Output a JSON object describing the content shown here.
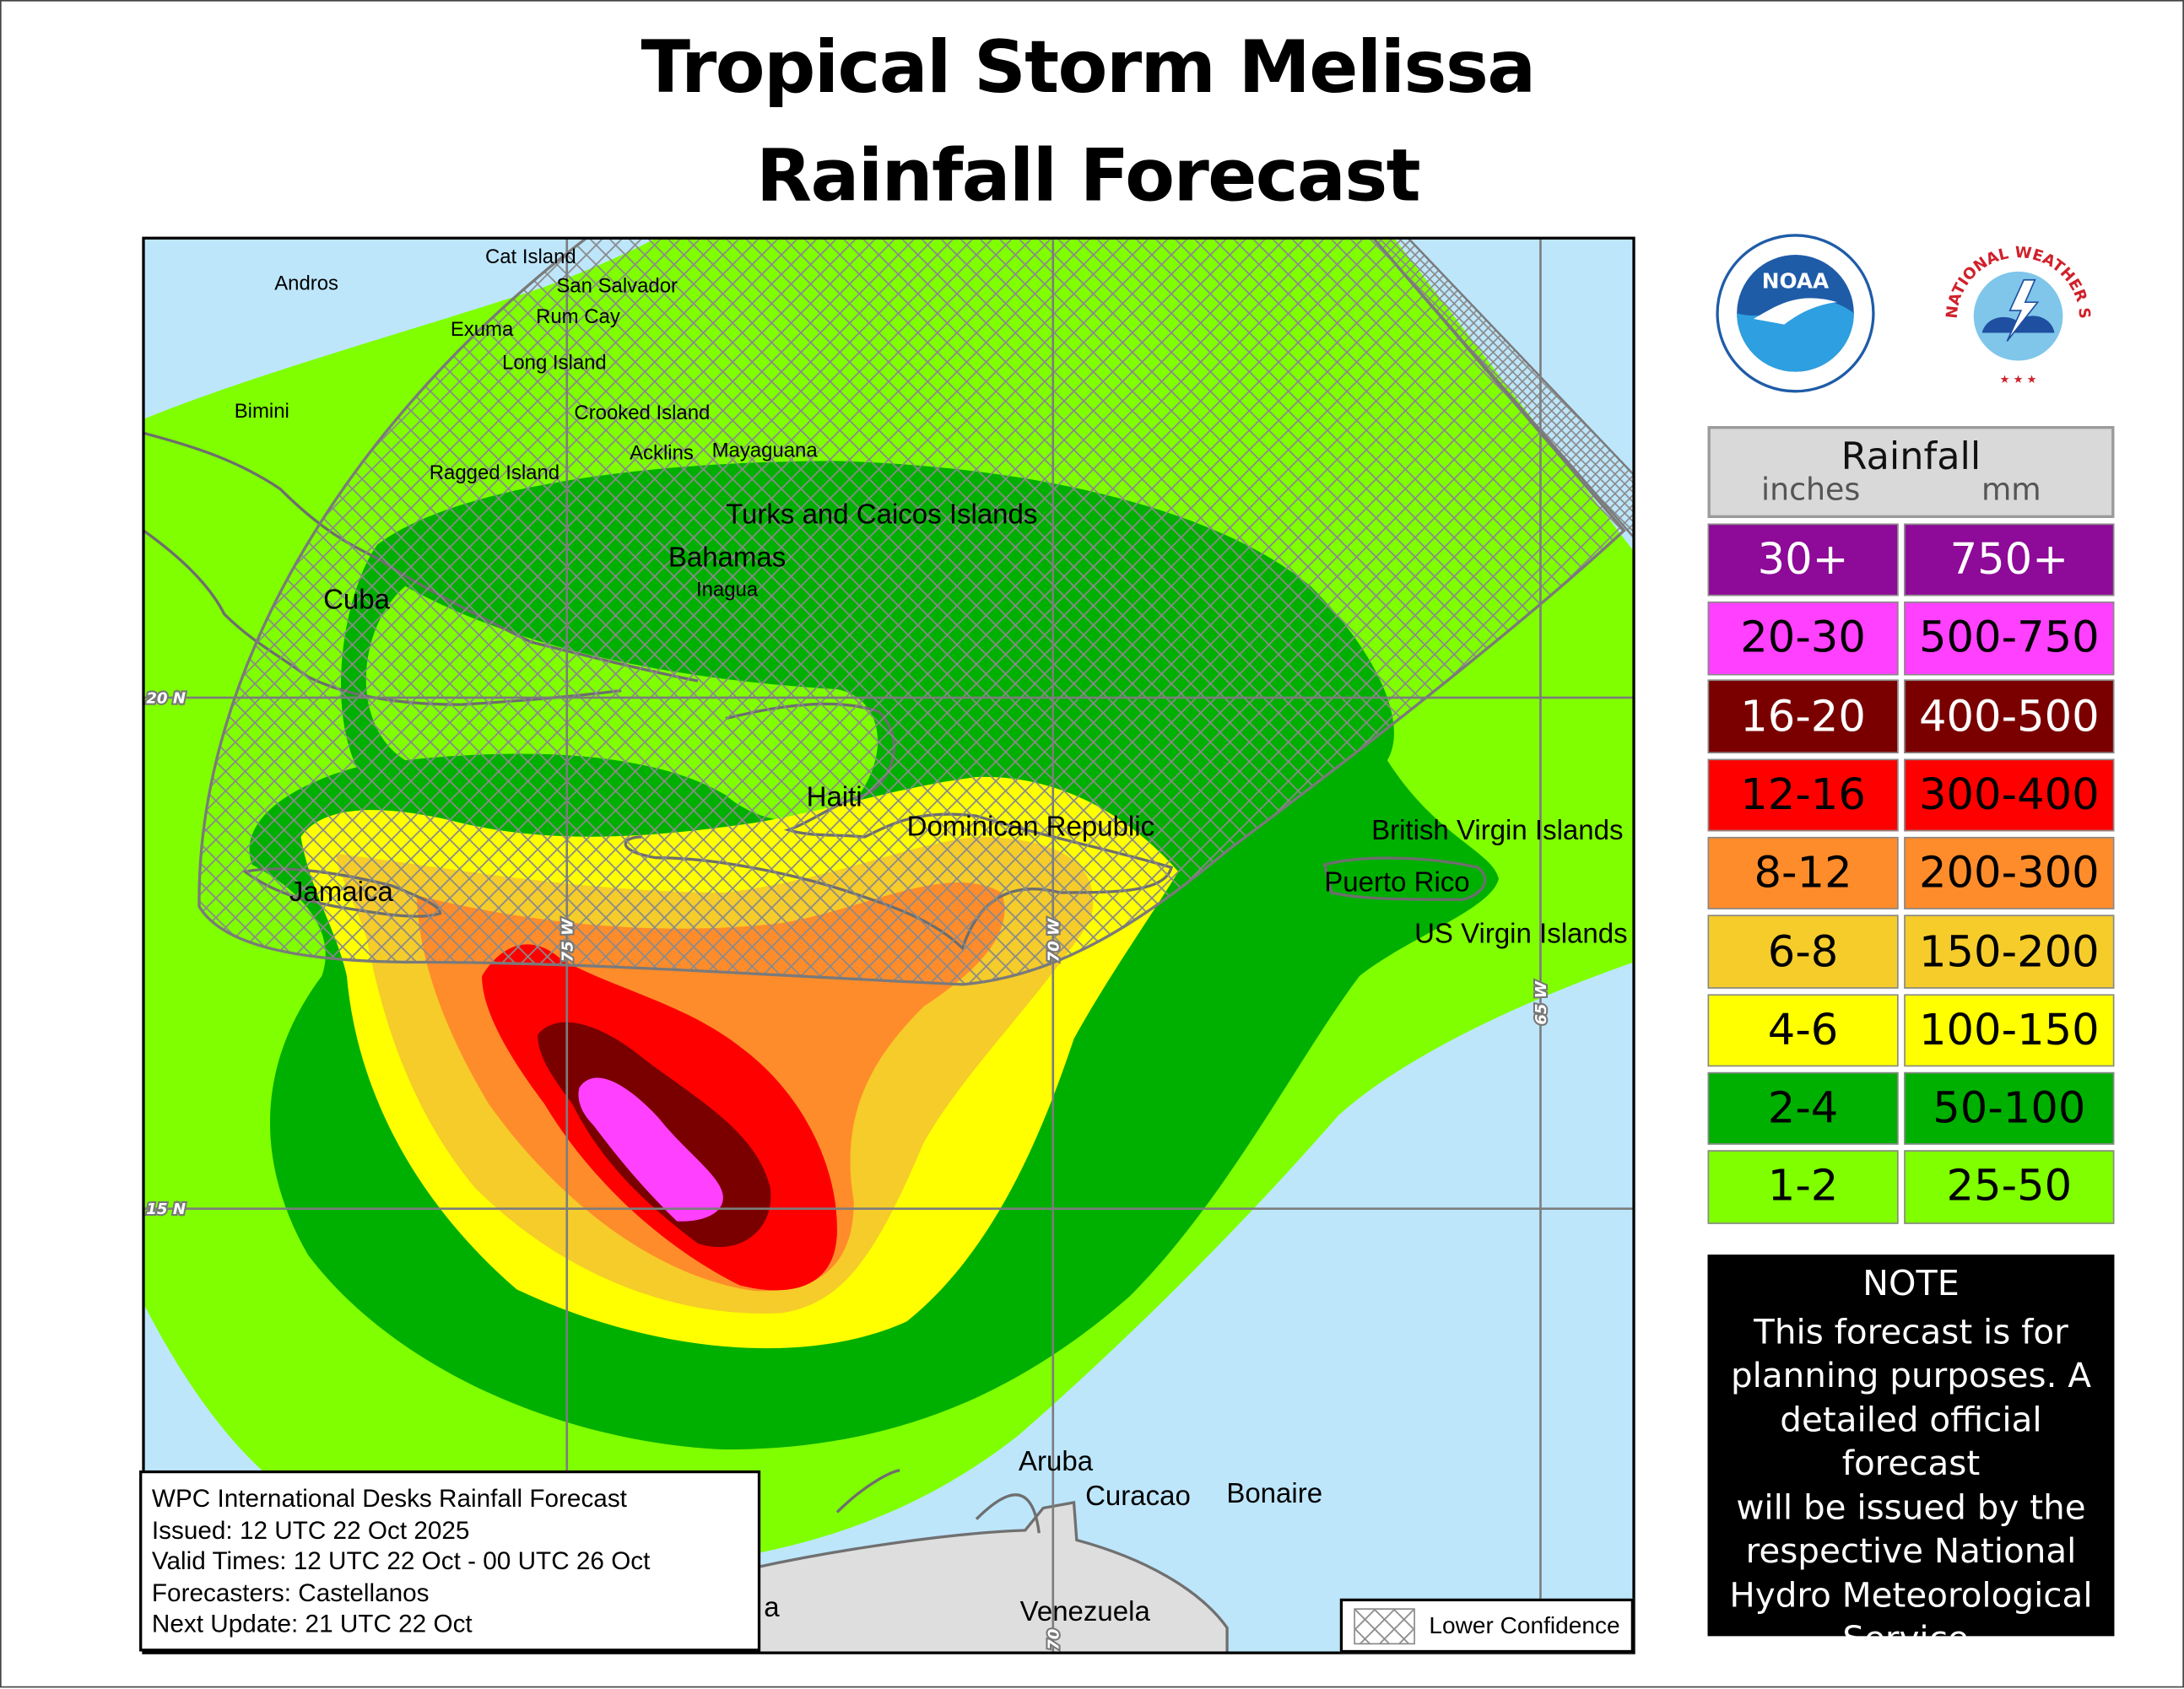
{
  "title": {
    "line1": "Tropical Storm Melissa",
    "line2": "Rainfall Forecast"
  },
  "map": {
    "labels": {
      "cat_island": "Cat Island",
      "andros": "Andros",
      "san_salvador": "San Salvador",
      "rum_cay": "Rum Cay",
      "exuma": "Exuma",
      "long_island": "Long Island",
      "bimini": "Bimini",
      "crooked_island": "Crooked Island",
      "acklins": "Acklins",
      "mayaguana": "Mayaguana",
      "ragged_island": "Ragged Island",
      "turks_caicos": "Turks and Caicos Islands",
      "bahamas": "Bahamas",
      "inagua": "Inagua",
      "cuba": "Cuba",
      "haiti": "Haiti",
      "dominican_republic": "Dominican Republic",
      "british_virgin_islands": "British Virgin Islands",
      "puerto_rico": "Puerto Rico",
      "jamaica": "Jamaica",
      "us_virgin_islands": "US Virgin Islands",
      "aruba": "Aruba",
      "curacao": "Curacao",
      "bonaire": "Bonaire",
      "venezuela": "Venezuela",
      "colombia_partial": "a"
    },
    "gridlines": {
      "lat_20": "20 N",
      "lat_15": "15 N",
      "lon_75": "75 W",
      "lon_70": "70 W",
      "lon_65": "65 W",
      "lon_70_bottom": "70"
    }
  },
  "info_box": {
    "line1": "WPC International Desks Rainfall Forecast",
    "line2": "Issued: 12 UTC 22 Oct 2025",
    "line3": "Valid Times: 12 UTC 22 Oct - 00 UTC 26 Oct",
    "line4": "Forecasters: Castellanos",
    "line5": "Next Update: 21 UTC 22 Oct"
  },
  "hatch_legend": {
    "label": "Lower Confidence"
  },
  "logos": {
    "noaa": "NOAA",
    "nws": "NATIONAL WEATHER SERVICE"
  },
  "legend": {
    "title": "Rainfall",
    "unit_in": "inches",
    "unit_mm": "mm",
    "rows": [
      {
        "in": "30+",
        "mm": "750+",
        "color": "#8e0a98",
        "text": "#ffffff"
      },
      {
        "in": "20-30",
        "mm": "500-750",
        "color": "#ff40ff",
        "text": "#000000"
      },
      {
        "in": "16-20",
        "mm": "400-500",
        "color": "#7a0000",
        "text": "#ffffff"
      },
      {
        "in": "12-16",
        "mm": "300-400",
        "color": "#ff0000",
        "text": "#000000"
      },
      {
        "in": "8-12",
        "mm": "200-300",
        "color": "#ff8c2a",
        "text": "#000000"
      },
      {
        "in": "6-8",
        "mm": "150-200",
        "color": "#f5cc2a",
        "text": "#000000"
      },
      {
        "in": "4-6",
        "mm": "100-150",
        "color": "#ffff00",
        "text": "#000000"
      },
      {
        "in": "2-4",
        "mm": "50-100",
        "color": "#00b000",
        "text": "#000000"
      },
      {
        "in": "1-2",
        "mm": "25-50",
        "color": "#7fff00",
        "text": "#000000"
      }
    ]
  },
  "note": {
    "title": "NOTE",
    "lines": [
      "This forecast is for",
      "planning purposes. A",
      "detailed official forecast",
      "will be issued by the",
      "respective National",
      "Hydro Meteorological",
      "Service."
    ]
  }
}
